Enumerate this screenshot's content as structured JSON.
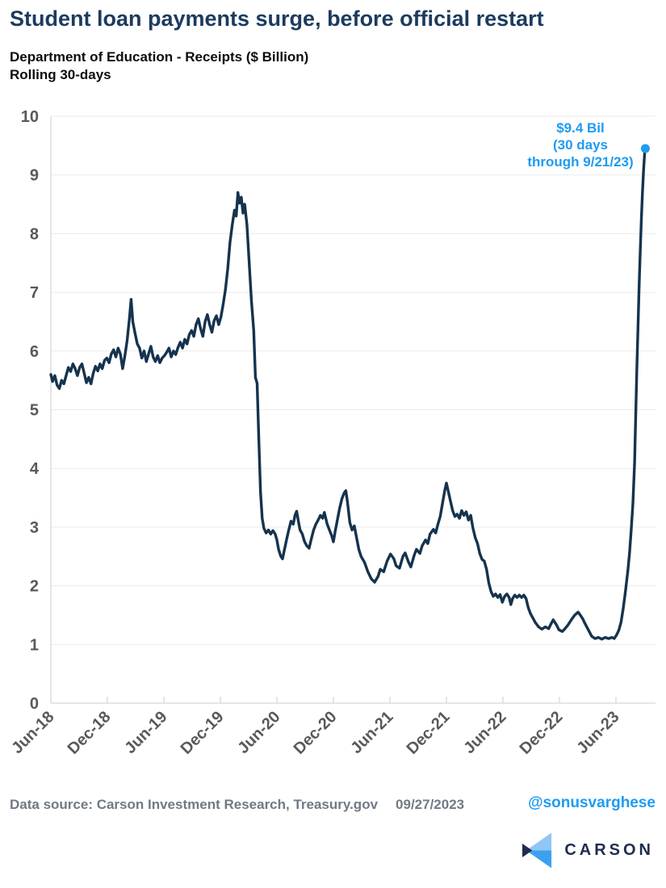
{
  "header": {
    "title": "Student loan payments surge, before official restart",
    "subtitle_line1": "Department of Education - Receipts ($ Billion)",
    "subtitle_line2": "Rolling 30-days"
  },
  "annotation": {
    "line1": "$9.4 Bil",
    "line2": "(30 days",
    "line3": "through 9/21/23)"
  },
  "footer": {
    "source": "Data source: Carson Investment Research, Treasury.gov",
    "date": "09/27/2023",
    "handle": "@sonusvarghese",
    "brand": "CARSON"
  },
  "colors": {
    "line": "#15334E",
    "accent_blue": "#1E9BF0",
    "title_navy": "#1C3B5E",
    "axis_label_gray": "#595959",
    "gridline": "#EAEAEA",
    "axis_line": "#D6D6D6",
    "footer_gray": "#707A85",
    "logo_navy": "#1F2D4E",
    "logo_light_blue": "#8FC6F3",
    "logo_mid_blue": "#3DA0EF"
  },
  "chart_data": {
    "type": "line",
    "title": "Department of Education - Receipts ($ Billion), Rolling 30-days",
    "xlabel": "",
    "ylabel": "$ Billion",
    "ylim": [
      0,
      10
    ],
    "y_ticks": [
      0,
      1,
      2,
      3,
      4,
      5,
      6,
      7,
      8,
      9,
      10
    ],
    "grid": "horizontal",
    "legend": "none",
    "x_ticks": [
      {
        "label": "Jun-18",
        "t": 2018.455
      },
      {
        "label": "Dec-18",
        "t": 2018.955
      },
      {
        "label": "Jun-19",
        "t": 2019.455
      },
      {
        "label": "Dec-19",
        "t": 2019.955
      },
      {
        "label": "Jun-20",
        "t": 2020.455
      },
      {
        "label": "Dec-20",
        "t": 2020.955
      },
      {
        "label": "Jun-21",
        "t": 2021.455
      },
      {
        "label": "Dec-21",
        "t": 2021.955
      },
      {
        "label": "Jun-22",
        "t": 2022.455
      },
      {
        "label": "Dec-22",
        "t": 2022.955
      },
      {
        "label": "Jun-23",
        "t": 2023.455
      }
    ],
    "endpoint": {
      "t": 2023.715,
      "value": 9.45,
      "date": "9/21/23",
      "marker_color": "#1E9BF0",
      "label": "$9.4 Bil (30 days through 9/21/23)"
    },
    "series": [
      {
        "name": "DoE receipts, rolling 30-day ($B)",
        "color": "#15334E",
        "points": [
          [
            2018.455,
            5.6
          ],
          [
            2018.47,
            5.48
          ],
          [
            2018.49,
            5.58
          ],
          [
            2018.51,
            5.42
          ],
          [
            2018.53,
            5.36
          ],
          [
            2018.55,
            5.5
          ],
          [
            2018.57,
            5.44
          ],
          [
            2018.59,
            5.58
          ],
          [
            2018.61,
            5.72
          ],
          [
            2018.63,
            5.65
          ],
          [
            2018.65,
            5.78
          ],
          [
            2018.67,
            5.7
          ],
          [
            2018.69,
            5.58
          ],
          [
            2018.71,
            5.72
          ],
          [
            2018.73,
            5.78
          ],
          [
            2018.75,
            5.62
          ],
          [
            2018.77,
            5.46
          ],
          [
            2018.79,
            5.55
          ],
          [
            2018.81,
            5.44
          ],
          [
            2018.83,
            5.62
          ],
          [
            2018.85,
            5.74
          ],
          [
            2018.87,
            5.66
          ],
          [
            2018.89,
            5.78
          ],
          [
            2018.91,
            5.7
          ],
          [
            2018.93,
            5.84
          ],
          [
            2018.95,
            5.88
          ],
          [
            2018.97,
            5.8
          ],
          [
            2018.99,
            5.95
          ],
          [
            2019.01,
            6.02
          ],
          [
            2019.03,
            5.9
          ],
          [
            2019.05,
            6.05
          ],
          [
            2019.07,
            5.95
          ],
          [
            2019.09,
            5.7
          ],
          [
            2019.11,
            5.92
          ],
          [
            2019.13,
            6.18
          ],
          [
            2019.15,
            6.55
          ],
          [
            2019.165,
            6.88
          ],
          [
            2019.18,
            6.5
          ],
          [
            2019.2,
            6.3
          ],
          [
            2019.22,
            6.12
          ],
          [
            2019.24,
            6.05
          ],
          [
            2019.26,
            5.88
          ],
          [
            2019.28,
            6.0
          ],
          [
            2019.3,
            5.82
          ],
          [
            2019.32,
            5.95
          ],
          [
            2019.34,
            6.08
          ],
          [
            2019.36,
            5.9
          ],
          [
            2019.38,
            5.82
          ],
          [
            2019.4,
            5.92
          ],
          [
            2019.42,
            5.8
          ],
          [
            2019.44,
            5.88
          ],
          [
            2019.46,
            5.92
          ],
          [
            2019.48,
            5.98
          ],
          [
            2019.5,
            6.05
          ],
          [
            2019.52,
            5.9
          ],
          [
            2019.54,
            6.0
          ],
          [
            2019.56,
            5.94
          ],
          [
            2019.58,
            6.06
          ],
          [
            2019.6,
            6.15
          ],
          [
            2019.62,
            6.05
          ],
          [
            2019.64,
            6.2
          ],
          [
            2019.66,
            6.12
          ],
          [
            2019.68,
            6.28
          ],
          [
            2019.7,
            6.35
          ],
          [
            2019.72,
            6.25
          ],
          [
            2019.74,
            6.45
          ],
          [
            2019.76,
            6.55
          ],
          [
            2019.78,
            6.38
          ],
          [
            2019.8,
            6.25
          ],
          [
            2019.82,
            6.5
          ],
          [
            2019.84,
            6.62
          ],
          [
            2019.86,
            6.45
          ],
          [
            2019.88,
            6.32
          ],
          [
            2019.9,
            6.52
          ],
          [
            2019.92,
            6.6
          ],
          [
            2019.94,
            6.45
          ],
          [
            2019.96,
            6.58
          ],
          [
            2019.98,
            6.8
          ],
          [
            2020.0,
            7.05
          ],
          [
            2020.02,
            7.4
          ],
          [
            2020.04,
            7.85
          ],
          [
            2020.06,
            8.15
          ],
          [
            2020.08,
            8.4
          ],
          [
            2020.095,
            8.3
          ],
          [
            2020.11,
            8.7
          ],
          [
            2020.125,
            8.52
          ],
          [
            2020.14,
            8.62
          ],
          [
            2020.155,
            8.35
          ],
          [
            2020.17,
            8.5
          ],
          [
            2020.19,
            8.15
          ],
          [
            2020.21,
            7.5
          ],
          [
            2020.23,
            6.85
          ],
          [
            2020.25,
            6.35
          ],
          [
            2020.265,
            5.55
          ],
          [
            2020.28,
            5.45
          ],
          [
            2020.295,
            4.5
          ],
          [
            2020.31,
            3.6
          ],
          [
            2020.325,
            3.15
          ],
          [
            2020.34,
            2.98
          ],
          [
            2020.36,
            2.9
          ],
          [
            2020.38,
            2.95
          ],
          [
            2020.4,
            2.88
          ],
          [
            2020.42,
            2.94
          ],
          [
            2020.44,
            2.88
          ],
          [
            2020.455,
            2.78
          ],
          [
            2020.47,
            2.62
          ],
          [
            2020.49,
            2.5
          ],
          [
            2020.505,
            2.46
          ],
          [
            2020.52,
            2.6
          ],
          [
            2020.54,
            2.78
          ],
          [
            2020.56,
            2.95
          ],
          [
            2020.58,
            3.1
          ],
          [
            2020.6,
            3.05
          ],
          [
            2020.615,
            3.2
          ],
          [
            2020.63,
            3.27
          ],
          [
            2020.645,
            3.1
          ],
          [
            2020.66,
            2.95
          ],
          [
            2020.68,
            2.88
          ],
          [
            2020.7,
            2.75
          ],
          [
            2020.72,
            2.68
          ],
          [
            2020.74,
            2.64
          ],
          [
            2020.76,
            2.8
          ],
          [
            2020.78,
            2.95
          ],
          [
            2020.8,
            3.05
          ],
          [
            2020.82,
            3.12
          ],
          [
            2020.84,
            3.2
          ],
          [
            2020.86,
            3.15
          ],
          [
            2020.875,
            3.25
          ],
          [
            2020.9,
            3.05
          ],
          [
            2020.92,
            2.95
          ],
          [
            2020.94,
            2.85
          ],
          [
            2020.955,
            2.75
          ],
          [
            2020.97,
            2.92
          ],
          [
            2020.99,
            3.12
          ],
          [
            2021.01,
            3.32
          ],
          [
            2021.03,
            3.48
          ],
          [
            2021.05,
            3.58
          ],
          [
            2021.065,
            3.62
          ],
          [
            2021.08,
            3.42
          ],
          [
            2021.1,
            3.08
          ],
          [
            2021.12,
            2.95
          ],
          [
            2021.14,
            3.02
          ],
          [
            2021.16,
            2.82
          ],
          [
            2021.18,
            2.62
          ],
          [
            2021.2,
            2.5
          ],
          [
            2021.23,
            2.4
          ],
          [
            2021.26,
            2.24
          ],
          [
            2021.29,
            2.12
          ],
          [
            2021.32,
            2.06
          ],
          [
            2021.35,
            2.16
          ],
          [
            2021.37,
            2.28
          ],
          [
            2021.4,
            2.24
          ],
          [
            2021.43,
            2.42
          ],
          [
            2021.46,
            2.54
          ],
          [
            2021.49,
            2.46
          ],
          [
            2021.51,
            2.34
          ],
          [
            2021.54,
            2.3
          ],
          [
            2021.57,
            2.5
          ],
          [
            2021.59,
            2.56
          ],
          [
            2021.62,
            2.4
          ],
          [
            2021.64,
            2.32
          ],
          [
            2021.67,
            2.52
          ],
          [
            2021.69,
            2.62
          ],
          [
            2021.72,
            2.55
          ],
          [
            2021.74,
            2.68
          ],
          [
            2021.77,
            2.78
          ],
          [
            2021.79,
            2.72
          ],
          [
            2021.81,
            2.88
          ],
          [
            2021.84,
            2.96
          ],
          [
            2021.86,
            2.9
          ],
          [
            2021.88,
            3.05
          ],
          [
            2021.9,
            3.18
          ],
          [
            2021.92,
            3.4
          ],
          [
            2021.94,
            3.62
          ],
          [
            2021.955,
            3.75
          ],
          [
            2021.97,
            3.62
          ],
          [
            2021.99,
            3.45
          ],
          [
            2022.01,
            3.28
          ],
          [
            2022.03,
            3.18
          ],
          [
            2022.05,
            3.22
          ],
          [
            2022.07,
            3.15
          ],
          [
            2022.09,
            3.28
          ],
          [
            2022.11,
            3.2
          ],
          [
            2022.13,
            3.26
          ],
          [
            2022.15,
            3.12
          ],
          [
            2022.17,
            3.2
          ],
          [
            2022.19,
            2.98
          ],
          [
            2022.21,
            2.82
          ],
          [
            2022.23,
            2.72
          ],
          [
            2022.25,
            2.55
          ],
          [
            2022.27,
            2.45
          ],
          [
            2022.29,
            2.42
          ],
          [
            2022.31,
            2.28
          ],
          [
            2022.33,
            2.05
          ],
          [
            2022.35,
            1.9
          ],
          [
            2022.37,
            1.82
          ],
          [
            2022.39,
            1.86
          ],
          [
            2022.41,
            1.8
          ],
          [
            2022.43,
            1.85
          ],
          [
            2022.45,
            1.72
          ],
          [
            2022.47,
            1.82
          ],
          [
            2022.49,
            1.86
          ],
          [
            2022.51,
            1.8
          ],
          [
            2022.525,
            1.68
          ],
          [
            2022.54,
            1.78
          ],
          [
            2022.56,
            1.84
          ],
          [
            2022.58,
            1.8
          ],
          [
            2022.6,
            1.84
          ],
          [
            2022.62,
            1.8
          ],
          [
            2022.64,
            1.84
          ],
          [
            2022.66,
            1.78
          ],
          [
            2022.68,
            1.62
          ],
          [
            2022.7,
            1.52
          ],
          [
            2022.72,
            1.45
          ],
          [
            2022.74,
            1.38
          ],
          [
            2022.77,
            1.3
          ],
          [
            2022.8,
            1.26
          ],
          [
            2022.83,
            1.3
          ],
          [
            2022.86,
            1.27
          ],
          [
            2022.88,
            1.35
          ],
          [
            2022.9,
            1.42
          ],
          [
            2022.93,
            1.33
          ],
          [
            2022.95,
            1.25
          ],
          [
            2022.98,
            1.22
          ],
          [
            2023.0,
            1.26
          ],
          [
            2023.03,
            1.33
          ],
          [
            2023.06,
            1.42
          ],
          [
            2023.09,
            1.5
          ],
          [
            2023.12,
            1.55
          ],
          [
            2023.14,
            1.5
          ],
          [
            2023.16,
            1.44
          ],
          [
            2023.18,
            1.36
          ],
          [
            2023.21,
            1.25
          ],
          [
            2023.24,
            1.14
          ],
          [
            2023.27,
            1.1
          ],
          [
            2023.3,
            1.12
          ],
          [
            2023.33,
            1.09
          ],
          [
            2023.36,
            1.12
          ],
          [
            2023.39,
            1.1
          ],
          [
            2023.42,
            1.12
          ],
          [
            2023.44,
            1.1
          ],
          [
            2023.46,
            1.16
          ],
          [
            2023.48,
            1.24
          ],
          [
            2023.5,
            1.38
          ],
          [
            2023.52,
            1.62
          ],
          [
            2023.54,
            1.92
          ],
          [
            2023.56,
            2.25
          ],
          [
            2023.575,
            2.55
          ],
          [
            2023.59,
            2.95
          ],
          [
            2023.605,
            3.4
          ],
          [
            2023.62,
            4.1
          ],
          [
            2023.63,
            4.9
          ],
          [
            2023.64,
            5.7
          ],
          [
            2023.65,
            6.4
          ],
          [
            2023.66,
            7.1
          ],
          [
            2023.67,
            7.7
          ],
          [
            2023.68,
            8.25
          ],
          [
            2023.69,
            8.72
          ],
          [
            2023.7,
            9.1
          ],
          [
            2023.71,
            9.4
          ],
          [
            2023.715,
            9.45
          ]
        ]
      }
    ]
  }
}
